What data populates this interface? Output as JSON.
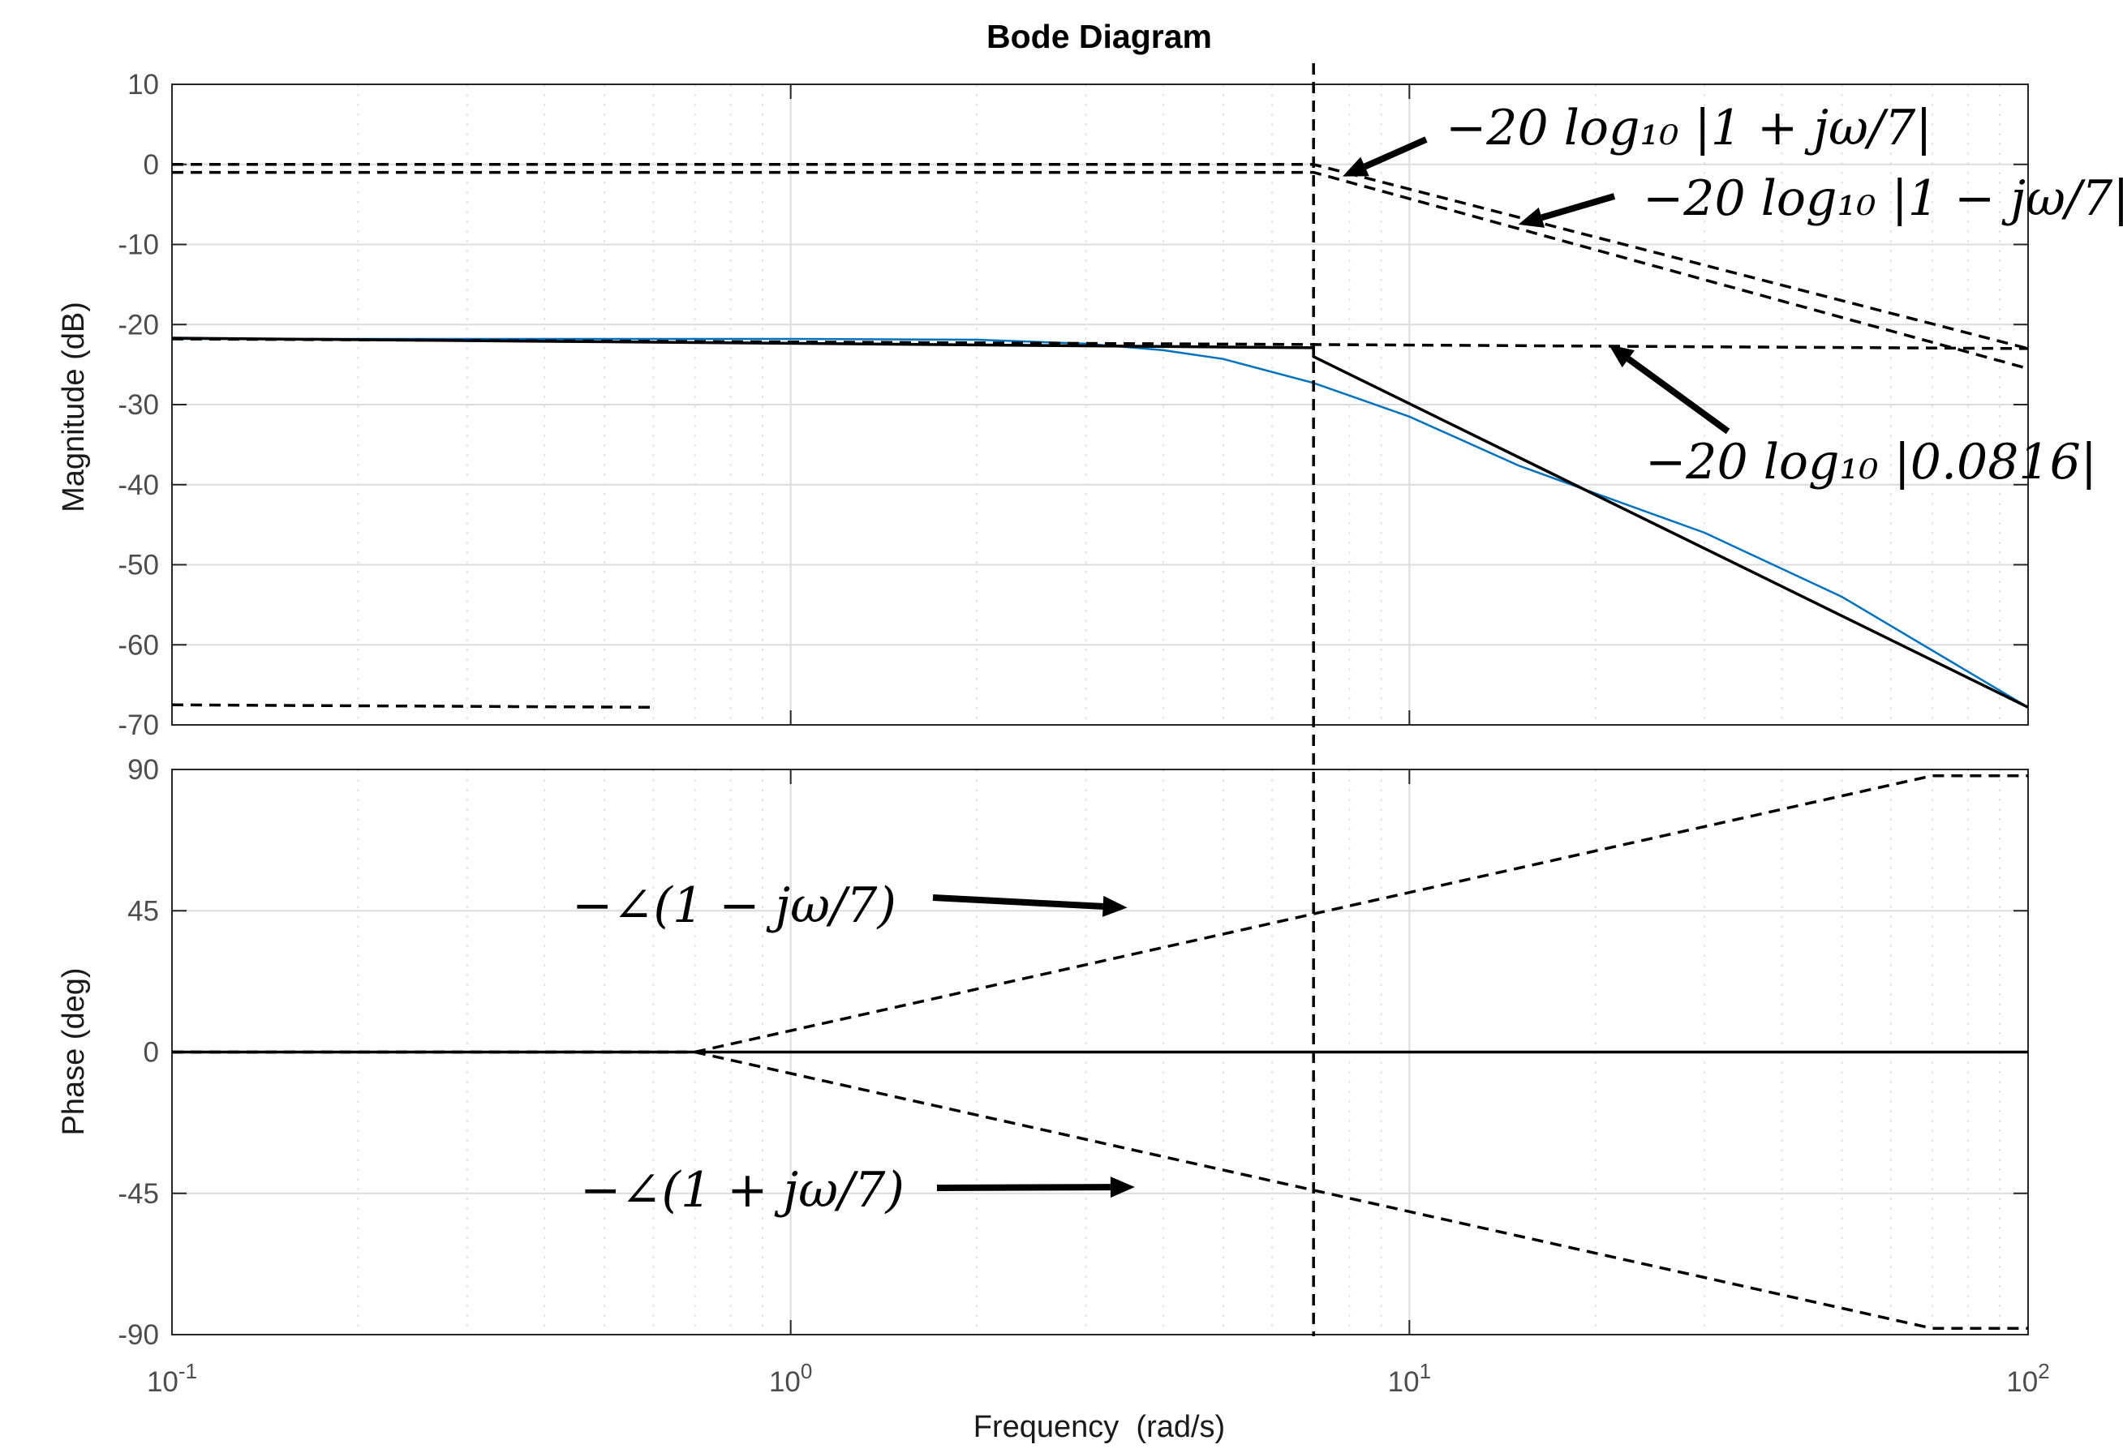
{
  "chart_data": [
    {
      "type": "line",
      "title": "Bode Diagram",
      "xlabel": "Frequency  (rad/s)",
      "ylabel": "Magnitude (dB)",
      "xscale": "log",
      "xlim": [
        0.1,
        100
      ],
      "ylim": [
        -70,
        10
      ],
      "xticks": [
        0.1,
        1,
        10,
        100
      ],
      "xtick_labels": [
        {
          "base": "10",
          "exp": "-1"
        },
        {
          "base": "10",
          "exp": "0"
        },
        {
          "base": "10",
          "exp": "1"
        },
        {
          "base": "10",
          "exp": "2"
        }
      ],
      "yticks": [
        10,
        0,
        -10,
        -20,
        -30,
        -40,
        -50,
        -60,
        -70
      ],
      "ytick_labels": [
        "10",
        "0",
        "-10",
        "-20",
        "-30",
        "-40",
        "-50",
        "-60",
        "-70"
      ],
      "grid": true,
      "series": [
        {
          "style": "solid-blue",
          "x": [
            0.1,
            0.5,
            1,
            2,
            3,
            4,
            5,
            7,
            10,
            15,
            20,
            30,
            50,
            100
          ],
          "y": [
            -21.8,
            -21.8,
            -21.8,
            -21.9,
            -22.4,
            -23.2,
            -24.3,
            -27.3,
            -31.5,
            -37.6,
            -41.1,
            -46.0,
            -54.0,
            -67.8
          ]
        },
        {
          "style": "solid-black",
          "x": [
            0.1,
            7,
            7,
            100
          ],
          "y": [
            -21.7,
            -22.9,
            -24.0,
            -67.8
          ]
        },
        {
          "style": "dashed",
          "x": [
            0.1,
            7,
            100
          ],
          "y": [
            0,
            0,
            -23
          ]
        },
        {
          "style": "dashed",
          "x": [
            0.1,
            7,
            100
          ],
          "y": [
            -1,
            -1,
            -25.5
          ]
        },
        {
          "style": "dashed",
          "x": [
            0.1,
            7,
            100
          ],
          "y": [
            -21.8,
            -22.5,
            -23
          ]
        },
        {
          "style": "dashed",
          "x": [
            0.1,
            0.6
          ],
          "y": [
            -67.5,
            -67.8
          ]
        }
      ],
      "vline": {
        "x": 7,
        "style": "dashed"
      },
      "annotations": [
        {
          "text": "−20 log₁₀ |1 + jω/7|",
          "arrow_to": {
            "x": 7.8,
            "y": -1.5
          }
        },
        {
          "text": "−20 log₁₀ |1 − jω/7|",
          "arrow_to": {
            "x": 15,
            "y": -7.5
          }
        },
        {
          "text": "−20 log₁₀ |0.0816|",
          "arrow_to": {
            "x": 21,
            "y": -22.5
          }
        }
      ]
    },
    {
      "type": "line",
      "xlabel": "Frequency  (rad/s)",
      "ylabel": "Phase (deg)",
      "xscale": "log",
      "xlim": [
        0.1,
        100
      ],
      "ylim": [
        -90,
        90
      ],
      "yticks": [
        90,
        45,
        0,
        -45,
        -90
      ],
      "ytick_labels": [
        "90",
        "45",
        "0",
        "-45",
        "-90"
      ],
      "grid": true,
      "series": [
        {
          "style": "solid-blue",
          "x": [
            0.1,
            100
          ],
          "y": [
            0,
            0
          ]
        },
        {
          "style": "solid-black",
          "x": [
            0.1,
            100
          ],
          "y": [
            0,
            0
          ]
        },
        {
          "style": "dashed",
          "x": [
            0.1,
            0.7,
            70,
            100
          ],
          "y": [
            0,
            0,
            88,
            88
          ]
        },
        {
          "style": "dashed",
          "x": [
            0.1,
            0.7,
            70,
            100
          ],
          "y": [
            0,
            0,
            -88,
            -88
          ]
        }
      ],
      "vline": {
        "x": 7,
        "style": "dashed"
      },
      "annotations": [
        {
          "text": "−∠(1 − jω/7)",
          "arrow_to": {
            "x": 3.5,
            "y": 46
          }
        },
        {
          "text": "−∠(1 + jω/7)",
          "arrow_to": {
            "x": 3.6,
            "y": -43
          }
        }
      ]
    }
  ]
}
